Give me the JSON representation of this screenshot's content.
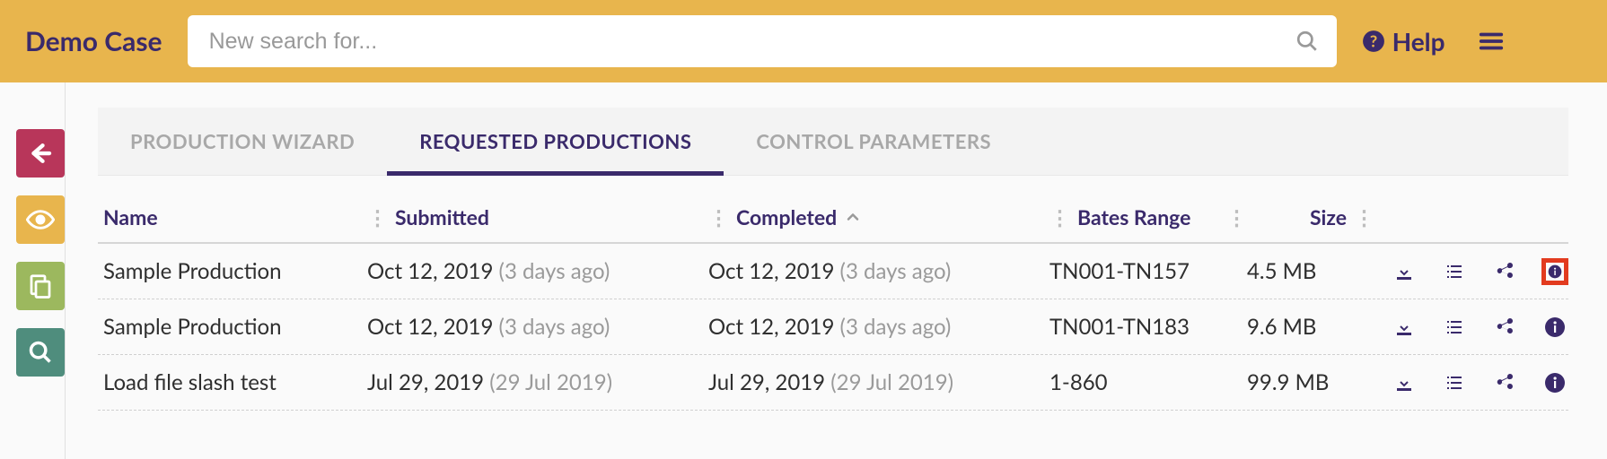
{
  "header": {
    "case_title": "Demo Case",
    "search_placeholder": "New search for...",
    "help_label": "Help"
  },
  "tabs": {
    "wizard": "PRODUCTION WIZARD",
    "requested": "REQUESTED PRODUCTIONS",
    "control": "CONTROL PARAMETERS"
  },
  "columns": {
    "name": "Name",
    "submitted": "Submitted",
    "completed": "Completed",
    "bates": "Bates Range",
    "size": "Size"
  },
  "rows": [
    {
      "name": "Sample Production",
      "submitted_date": "Oct 12, 2019",
      "submitted_ago": "(3 days ago)",
      "completed_date": "Oct 12, 2019",
      "completed_ago": "(3 days ago)",
      "bates": "TN001-TN157",
      "size": "4.5 MB",
      "highlight_info": true
    },
    {
      "name": "Sample Production",
      "submitted_date": "Oct 12, 2019",
      "submitted_ago": "(3 days ago)",
      "completed_date": "Oct 12, 2019",
      "completed_ago": "(3 days ago)",
      "bates": "TN001-TN183",
      "size": "9.6 MB",
      "highlight_info": false
    },
    {
      "name": "Load file slash test",
      "submitted_date": "Jul 29, 2019",
      "submitted_ago": "(29 Jul 2019)",
      "completed_date": "Jul 29, 2019",
      "completed_ago": "(29 Jul 2019)",
      "bates": "1-860",
      "size": "99.9 MB",
      "highlight_info": false
    }
  ],
  "colors": {
    "brand": "#3a2a6b",
    "topbar": "#e8b54d",
    "nav_red": "#b8365a",
    "nav_yellow": "#e8b54d",
    "nav_green": "#9cb85e",
    "nav_teal": "#4f8d7d",
    "highlight": "#e23b1f",
    "muted": "#9a9a9a"
  }
}
